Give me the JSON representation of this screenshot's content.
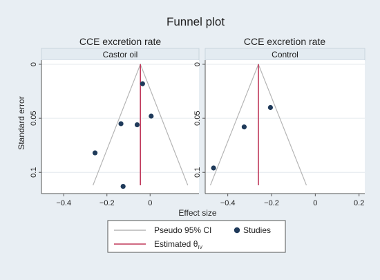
{
  "chart_data": {
    "type": "scatter",
    "title": "Funnel plot",
    "xlabel": "Effect size",
    "ylabel": "Standard error",
    "xlim": [
      -0.5,
      0.22
    ],
    "ylim": [
      0,
      0.112
    ],
    "y_reversed": true,
    "legend": {
      "placement": "bottom",
      "items": [
        {
          "label": "Pseudo 95% CI",
          "kind": "line",
          "color": "#b5b5b5"
        },
        {
          "label": "Studies",
          "kind": "marker",
          "color": "#1f3a5a"
        },
        {
          "label": "Estimated θ",
          "subscript": "IV",
          "kind": "line",
          "color": "#c0385a"
        }
      ]
    },
    "panels": [
      {
        "title": "CCE excretion rate",
        "strip_label": "Castor oil",
        "x_ticks": [
          -0.4,
          -0.2,
          0
        ],
        "x_tick_labels": [
          "−0.4",
          "−0.2",
          "0"
        ],
        "y_ticks": [
          0,
          0.05,
          0.1
        ],
        "y_tick_labels": [
          "0",
          "0.05",
          "0.1"
        ],
        "estimate": -0.045,
        "se_max": 0.112,
        "points": [
          {
            "x": -0.035,
            "y": 0.018
          },
          {
            "x": 0.005,
            "y": 0.048
          },
          {
            "x": -0.135,
            "y": 0.055
          },
          {
            "x": -0.06,
            "y": 0.056
          },
          {
            "x": -0.255,
            "y": 0.082
          },
          {
            "x": -0.125,
            "y": 0.113
          }
        ]
      },
      {
        "title": "CCE excretion rate",
        "strip_label": "Control",
        "x_ticks": [
          -0.4,
          -0.2,
          0,
          0.2
        ],
        "x_tick_labels": [
          "−0.4",
          "−0.2",
          "0",
          "0.2"
        ],
        "y_ticks": [
          0,
          0.05,
          0.1
        ],
        "y_tick_labels": [
          "0",
          "0.05",
          "0.1"
        ],
        "estimate": -0.26,
        "se_max": 0.112,
        "points": [
          {
            "x": -0.205,
            "y": 0.04
          },
          {
            "x": -0.325,
            "y": 0.058
          },
          {
            "x": -0.465,
            "y": 0.096
          }
        ]
      }
    ]
  }
}
